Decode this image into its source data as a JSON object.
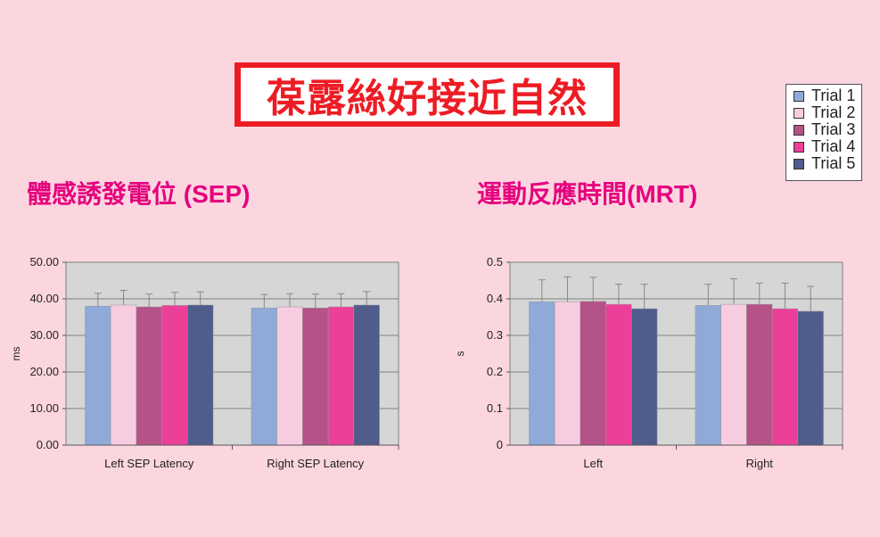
{
  "banner": {
    "text": "葆露絲好接近自然"
  },
  "sections": {
    "left_title": "體感誘發電位 (SEP)",
    "right_title": "運動反應時間(MRT)"
  },
  "legend": {
    "items": [
      {
        "label": "Trial 1",
        "color": "#8faad8"
      },
      {
        "label": "Trial 2",
        "color": "#f8cce0"
      },
      {
        "label": "Trial 3",
        "color": "#b55288"
      },
      {
        "label": "Trial 4",
        "color": "#ec3f98"
      },
      {
        "label": "Trial 5",
        "color": "#4f5c8c"
      }
    ]
  },
  "chart_data": [
    {
      "type": "bar",
      "title": "體感誘發電位 (SEP)",
      "categories": [
        "Left SEP Latency",
        "Right SEP Latency"
      ],
      "ylabel": "ms",
      "xlabel": "",
      "ylim": [
        0,
        50
      ],
      "yticks": [
        "0.00",
        "10.00",
        "20.00",
        "30.00",
        "40.00",
        "50.00"
      ],
      "grid": true,
      "series": [
        {
          "name": "Trial 1",
          "values": [
            38.0,
            37.5
          ],
          "errors": [
            3.5,
            3.7
          ]
        },
        {
          "name": "Trial 2",
          "values": [
            38.3,
            37.8
          ],
          "errors": [
            4.0,
            3.6
          ]
        },
        {
          "name": "Trial 3",
          "values": [
            37.8,
            37.5
          ],
          "errors": [
            3.5,
            3.8
          ]
        },
        {
          "name": "Trial 4",
          "values": [
            38.2,
            37.8
          ],
          "errors": [
            3.6,
            3.6
          ]
        },
        {
          "name": "Trial 5",
          "values": [
            38.3,
            38.3
          ],
          "errors": [
            3.6,
            3.7
          ]
        }
      ]
    },
    {
      "type": "bar",
      "title": "運動反應時間(MRT)",
      "categories": [
        "Left",
        "Right"
      ],
      "ylabel": "s",
      "xlabel": "",
      "ylim": [
        0,
        0.5
      ],
      "yticks": [
        "0",
        "0.1",
        "0.2",
        "0.3",
        "0.4",
        "0.5"
      ],
      "grid": true,
      "series": [
        {
          "name": "Trial 1",
          "values": [
            0.392,
            0.382
          ],
          "errors": [
            0.06,
            0.058
          ]
        },
        {
          "name": "Trial 2",
          "values": [
            0.392,
            0.385
          ],
          "errors": [
            0.068,
            0.07
          ]
        },
        {
          "name": "Trial 3",
          "values": [
            0.393,
            0.385
          ],
          "errors": [
            0.066,
            0.058
          ]
        },
        {
          "name": "Trial 4",
          "values": [
            0.385,
            0.373
          ],
          "errors": [
            0.055,
            0.07
          ]
        },
        {
          "name": "Trial 5",
          "values": [
            0.373,
            0.366
          ],
          "errors": [
            0.067,
            0.068
          ]
        }
      ]
    }
  ]
}
